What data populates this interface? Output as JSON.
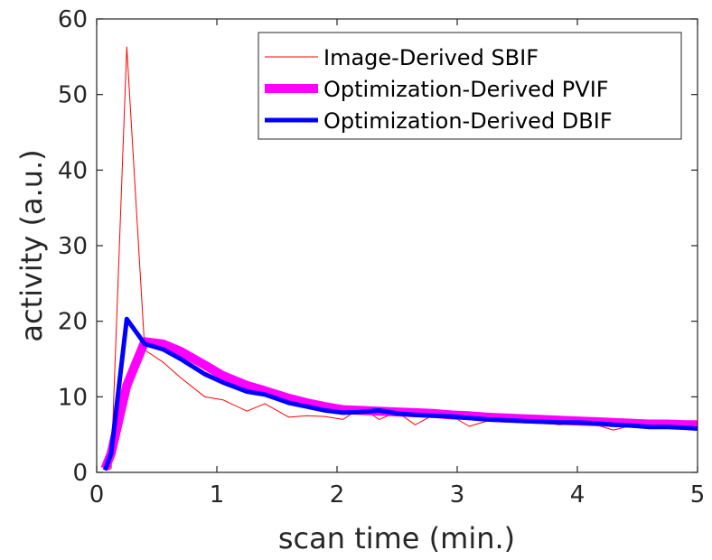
{
  "chart_data": {
    "type": "line",
    "xlabel": "scan time (min.)",
    "ylabel": "activity (a.u.)",
    "xlim": [
      0,
      5
    ],
    "ylim": [
      0,
      60
    ],
    "x_ticks": [
      "0",
      "1",
      "2",
      "3",
      "4",
      "5"
    ],
    "y_ticks": [
      "0",
      "10",
      "20",
      "30",
      "40",
      "50",
      "60"
    ],
    "grid": false,
    "legend_position": "top-right",
    "series": [
      {
        "name": "Image-Derived SBIF",
        "color": "#ff0000",
        "x": [
          0.07,
          0.12,
          0.25,
          0.4,
          0.55,
          0.7,
          0.9,
          1.05,
          1.25,
          1.4,
          1.6,
          1.75,
          1.9,
          2.05,
          2.2,
          2.35,
          2.5,
          2.65,
          2.8,
          2.95,
          3.1,
          3.25,
          3.4,
          3.55,
          3.7,
          3.85,
          4.0,
          4.15,
          4.3,
          4.45,
          4.6,
          4.75,
          4.9,
          5.0
        ],
        "y": [
          0.3,
          0.5,
          56.3,
          16.2,
          14.6,
          12.5,
          10.0,
          9.6,
          8.1,
          9.1,
          7.3,
          7.5,
          7.4,
          7.0,
          8.6,
          7.0,
          8.0,
          6.3,
          7.6,
          7.5,
          6.1,
          6.8,
          7.2,
          6.9,
          6.6,
          6.3,
          6.5,
          6.3,
          5.6,
          6.2,
          6.0,
          6.3,
          5.7,
          5.8
        ]
      },
      {
        "name": "Optimization-Derived PVIF",
        "color": "#ff00ff",
        "x": [
          0.07,
          0.12,
          0.25,
          0.4,
          0.55,
          0.7,
          0.9,
          1.05,
          1.25,
          1.4,
          1.6,
          1.75,
          1.9,
          2.05,
          2.2,
          2.35,
          2.5,
          2.65,
          2.8,
          2.95,
          3.1,
          3.25,
          3.4,
          3.55,
          3.7,
          3.85,
          4.0,
          4.15,
          4.3,
          4.45,
          4.6,
          4.75,
          4.9,
          5.0
        ],
        "y": [
          0.5,
          2.5,
          11.5,
          17.3,
          17.0,
          16.0,
          14.2,
          12.8,
          11.5,
          10.8,
          9.8,
          9.2,
          8.7,
          8.3,
          8.2,
          8.1,
          8.0,
          7.9,
          7.8,
          7.6,
          7.5,
          7.3,
          7.2,
          7.1,
          7.0,
          6.9,
          6.8,
          6.7,
          6.6,
          6.5,
          6.4,
          6.4,
          6.3,
          6.3
        ]
      },
      {
        "name": "Optimization-Derived DBIF",
        "color": "#0000ff",
        "x": [
          0.07,
          0.12,
          0.25,
          0.4,
          0.55,
          0.7,
          0.9,
          1.05,
          1.25,
          1.4,
          1.6,
          1.75,
          1.9,
          2.05,
          2.2,
          2.35,
          2.5,
          2.65,
          2.8,
          2.95,
          3.1,
          3.25,
          3.4,
          3.55,
          3.7,
          3.85,
          4.0,
          4.15,
          4.3,
          4.45,
          4.6,
          4.75,
          4.9,
          5.0
        ],
        "y": [
          0.3,
          2.5,
          20.3,
          17.0,
          16.3,
          15.0,
          13.0,
          11.9,
          10.7,
          10.3,
          9.2,
          8.7,
          8.2,
          7.9,
          8.0,
          8.2,
          7.8,
          7.6,
          7.5,
          7.4,
          7.2,
          7.0,
          6.9,
          6.8,
          6.7,
          6.6,
          6.6,
          6.5,
          6.3,
          6.2,
          6.0,
          6.0,
          5.9,
          5.8
        ]
      }
    ]
  }
}
